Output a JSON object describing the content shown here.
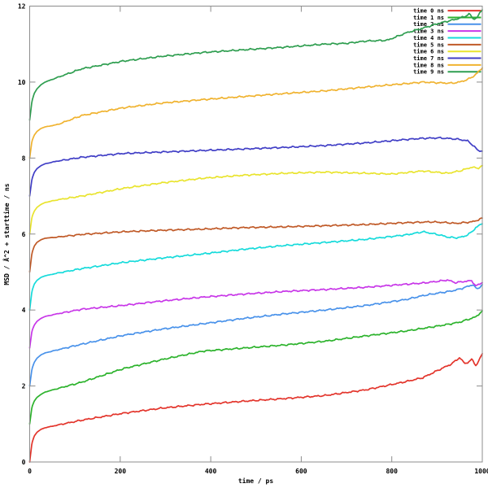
{
  "chart_data": {
    "type": "line",
    "title": "",
    "xlabel": "time / ps",
    "ylabel": "MSD / Å^2 + starttime / ns",
    "xlim": [
      0,
      1000
    ],
    "ylim": [
      0,
      12
    ],
    "xticks": [
      0,
      200,
      400,
      600,
      800,
      1000
    ],
    "yticks": [
      0,
      2,
      4,
      6,
      8,
      10,
      12
    ],
    "grid": false,
    "legend_position": "top-right-inside",
    "frame_color": "#8c8c8c",
    "series": [
      {
        "name": "time 0 ns",
        "color": "#e3352c",
        "points": [
          [
            0,
            0
          ],
          [
            5,
            0.5
          ],
          [
            10,
            0.68
          ],
          [
            16,
            0.78
          ],
          [
            25,
            0.86
          ],
          [
            34,
            0.9
          ],
          [
            61,
            0.97
          ],
          [
            115,
            1.1
          ],
          [
            205,
            1.28
          ],
          [
            294,
            1.42
          ],
          [
            384,
            1.52
          ],
          [
            474,
            1.6
          ],
          [
            564,
            1.67
          ],
          [
            653,
            1.75
          ],
          [
            743,
            1.9
          ],
          [
            833,
            2.12
          ],
          [
            869,
            2.22
          ],
          [
            905,
            2.43
          ],
          [
            932,
            2.58
          ],
          [
            950,
            2.75
          ],
          [
            962,
            2.58
          ],
          [
            977,
            2.7
          ],
          [
            986,
            2.53
          ],
          [
            1000,
            2.85
          ]
        ]
      },
      {
        "name": "time 1 ns",
        "color": "#2db32d",
        "points": [
          [
            0,
            1
          ],
          [
            5,
            1.45
          ],
          [
            10,
            1.6
          ],
          [
            16,
            1.7
          ],
          [
            25,
            1.78
          ],
          [
            34,
            1.84
          ],
          [
            61,
            1.93
          ],
          [
            115,
            2.1
          ],
          [
            205,
            2.45
          ],
          [
            294,
            2.7
          ],
          [
            384,
            2.92
          ],
          [
            474,
            3.0
          ],
          [
            564,
            3.08
          ],
          [
            653,
            3.18
          ],
          [
            743,
            3.32
          ],
          [
            833,
            3.45
          ],
          [
            887,
            3.55
          ],
          [
            923,
            3.62
          ],
          [
            950,
            3.68
          ],
          [
            968,
            3.75
          ],
          [
            986,
            3.82
          ],
          [
            1000,
            3.98
          ]
        ]
      },
      {
        "name": "time 2 ns",
        "color": "#4992ea",
        "points": [
          [
            0,
            2
          ],
          [
            5,
            2.45
          ],
          [
            10,
            2.62
          ],
          [
            16,
            2.73
          ],
          [
            25,
            2.82
          ],
          [
            34,
            2.87
          ],
          [
            61,
            2.95
          ],
          [
            115,
            3.1
          ],
          [
            205,
            3.33
          ],
          [
            294,
            3.5
          ],
          [
            384,
            3.64
          ],
          [
            474,
            3.78
          ],
          [
            564,
            3.9
          ],
          [
            653,
            4.0
          ],
          [
            743,
            4.12
          ],
          [
            833,
            4.28
          ],
          [
            869,
            4.38
          ],
          [
            905,
            4.45
          ],
          [
            932,
            4.5
          ],
          [
            950,
            4.55
          ],
          [
            968,
            4.62
          ],
          [
            980,
            4.67
          ],
          [
            988,
            4.54
          ],
          [
            994,
            4.6
          ],
          [
            1000,
            4.67
          ]
        ]
      },
      {
        "name": "time 3 ns",
        "color": "#c837e8",
        "points": [
          [
            0,
            3
          ],
          [
            5,
            3.45
          ],
          [
            10,
            3.6
          ],
          [
            16,
            3.7
          ],
          [
            25,
            3.78
          ],
          [
            34,
            3.83
          ],
          [
            61,
            3.9
          ],
          [
            115,
            4.02
          ],
          [
            205,
            4.12
          ],
          [
            294,
            4.24
          ],
          [
            384,
            4.34
          ],
          [
            474,
            4.42
          ],
          [
            564,
            4.49
          ],
          [
            653,
            4.54
          ],
          [
            743,
            4.6
          ],
          [
            833,
            4.68
          ],
          [
            869,
            4.71
          ],
          [
            905,
            4.76
          ],
          [
            923,
            4.79
          ],
          [
            941,
            4.72
          ],
          [
            959,
            4.75
          ],
          [
            977,
            4.77
          ],
          [
            986,
            4.63
          ],
          [
            1000,
            4.72
          ]
        ]
      },
      {
        "name": "time 4 ns",
        "color": "#17dbdb",
        "points": [
          [
            0,
            4
          ],
          [
            5,
            4.5
          ],
          [
            10,
            4.68
          ],
          [
            16,
            4.78
          ],
          [
            25,
            4.86
          ],
          [
            34,
            4.9
          ],
          [
            61,
            4.97
          ],
          [
            115,
            5.09
          ],
          [
            205,
            5.25
          ],
          [
            294,
            5.37
          ],
          [
            384,
            5.48
          ],
          [
            474,
            5.6
          ],
          [
            564,
            5.7
          ],
          [
            653,
            5.78
          ],
          [
            743,
            5.86
          ],
          [
            833,
            5.98
          ],
          [
            869,
            6.06
          ],
          [
            887,
            6.02
          ],
          [
            905,
            5.98
          ],
          [
            923,
            5.92
          ],
          [
            941,
            5.9
          ],
          [
            959,
            5.93
          ],
          [
            977,
            6.05
          ],
          [
            986,
            6.18
          ],
          [
            1000,
            6.27
          ]
        ]
      },
      {
        "name": "time 5 ns",
        "color": "#c05a28",
        "points": [
          [
            0,
            5
          ],
          [
            5,
            5.5
          ],
          [
            10,
            5.68
          ],
          [
            16,
            5.78
          ],
          [
            25,
            5.85
          ],
          [
            34,
            5.89
          ],
          [
            61,
            5.92
          ],
          [
            115,
            5.99
          ],
          [
            205,
            6.06
          ],
          [
            294,
            6.1
          ],
          [
            384,
            6.13
          ],
          [
            474,
            6.17
          ],
          [
            564,
            6.19
          ],
          [
            653,
            6.22
          ],
          [
            743,
            6.25
          ],
          [
            833,
            6.3
          ],
          [
            887,
            6.32
          ],
          [
            923,
            6.3
          ],
          [
            941,
            6.28
          ],
          [
            959,
            6.3
          ],
          [
            977,
            6.32
          ],
          [
            986,
            6.35
          ],
          [
            1000,
            6.42
          ]
        ]
      },
      {
        "name": "time 6 ns",
        "color": "#e9e42f",
        "points": [
          [
            0,
            6
          ],
          [
            5,
            6.45
          ],
          [
            10,
            6.6
          ],
          [
            16,
            6.7
          ],
          [
            25,
            6.78
          ],
          [
            34,
            6.83
          ],
          [
            61,
            6.9
          ],
          [
            115,
            7.0
          ],
          [
            205,
            7.2
          ],
          [
            294,
            7.35
          ],
          [
            384,
            7.47
          ],
          [
            474,
            7.55
          ],
          [
            564,
            7.6
          ],
          [
            653,
            7.63
          ],
          [
            743,
            7.6
          ],
          [
            800,
            7.58
          ],
          [
            869,
            7.66
          ],
          [
            923,
            7.6
          ],
          [
            950,
            7.66
          ],
          [
            977,
            7.76
          ],
          [
            990,
            7.73
          ],
          [
            1000,
            7.8
          ]
        ]
      },
      {
        "name": "time 7 ns",
        "color": "#413fc6",
        "points": [
          [
            0,
            7
          ],
          [
            5,
            7.45
          ],
          [
            10,
            7.62
          ],
          [
            16,
            7.72
          ],
          [
            25,
            7.8
          ],
          [
            34,
            7.85
          ],
          [
            61,
            7.92
          ],
          [
            115,
            8.02
          ],
          [
            205,
            8.12
          ],
          [
            294,
            8.16
          ],
          [
            384,
            8.2
          ],
          [
            474,
            8.24
          ],
          [
            564,
            8.28
          ],
          [
            653,
            8.33
          ],
          [
            743,
            8.4
          ],
          [
            833,
            8.49
          ],
          [
            869,
            8.52
          ],
          [
            905,
            8.53
          ],
          [
            932,
            8.51
          ],
          [
            950,
            8.49
          ],
          [
            968,
            8.45
          ],
          [
            980,
            8.33
          ],
          [
            990,
            8.2
          ],
          [
            1000,
            8.18
          ]
        ]
      },
      {
        "name": "time 8 ns",
        "color": "#f0b330",
        "points": [
          [
            0,
            8
          ],
          [
            5,
            8.45
          ],
          [
            10,
            8.6
          ],
          [
            16,
            8.7
          ],
          [
            25,
            8.78
          ],
          [
            34,
            8.82
          ],
          [
            61,
            8.88
          ],
          [
            115,
            9.12
          ],
          [
            205,
            9.32
          ],
          [
            294,
            9.45
          ],
          [
            384,
            9.54
          ],
          [
            474,
            9.62
          ],
          [
            564,
            9.7
          ],
          [
            653,
            9.77
          ],
          [
            743,
            9.87
          ],
          [
            800,
            9.93
          ],
          [
            833,
            9.96
          ],
          [
            869,
            10.0
          ],
          [
            905,
            9.98
          ],
          [
            932,
            9.97
          ],
          [
            950,
            10.0
          ],
          [
            968,
            10.07
          ],
          [
            980,
            10.15
          ],
          [
            990,
            10.25
          ],
          [
            1000,
            10.37
          ]
        ]
      },
      {
        "name": "time 9 ns",
        "color": "#2f9e50",
        "points": [
          [
            0,
            9
          ],
          [
            5,
            9.5
          ],
          [
            10,
            9.7
          ],
          [
            16,
            9.82
          ],
          [
            25,
            9.93
          ],
          [
            34,
            10.0
          ],
          [
            61,
            10.12
          ],
          [
            115,
            10.35
          ],
          [
            205,
            10.55
          ],
          [
            294,
            10.68
          ],
          [
            384,
            10.78
          ],
          [
            474,
            10.85
          ],
          [
            564,
            10.92
          ],
          [
            653,
            11.0
          ],
          [
            700,
            11.02
          ],
          [
            743,
            11.08
          ],
          [
            790,
            11.1
          ],
          [
            833,
            11.3
          ],
          [
            869,
            11.42
          ],
          [
            905,
            11.55
          ],
          [
            940,
            11.65
          ],
          [
            960,
            11.72
          ],
          [
            972,
            11.8
          ],
          [
            980,
            11.65
          ],
          [
            988,
            11.7
          ],
          [
            1000,
            11.9
          ]
        ]
      }
    ]
  }
}
